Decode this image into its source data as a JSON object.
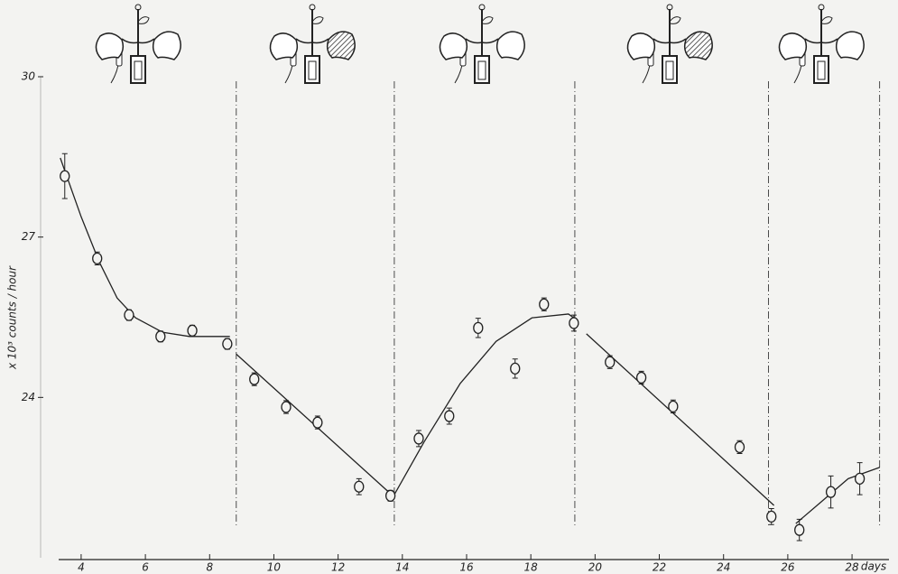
{
  "chart_data": {
    "type": "scatter",
    "y_label": "x 10³ counts / hour",
    "x_label": "days",
    "xlim": [
      3.3,
      29.15
    ],
    "ylim": [
      21,
      30
    ],
    "xticks": [
      4,
      6,
      8,
      10,
      12,
      14,
      16,
      18,
      20,
      22,
      24,
      26,
      28
    ],
    "yticks": [
      24,
      27,
      30
    ],
    "color": "#222222",
    "x": [
      3.49,
      4.5,
      5.49,
      6.47,
      7.46,
      8.55,
      9.39,
      10.38,
      11.36,
      12.65,
      13.63,
      14.51,
      15.46,
      16.36,
      17.51,
      18.41,
      19.34,
      20.46,
      21.44,
      22.43,
      24.5,
      25.49,
      26.36,
      27.34,
      28.24
    ],
    "values": [
      28.14,
      26.6,
      25.54,
      25.14,
      25.25,
      25.0,
      24.34,
      23.82,
      23.53,
      22.33,
      22.16,
      23.23,
      23.65,
      25.3,
      24.54,
      25.74,
      25.39,
      24.66,
      24.37,
      23.83,
      23.07,
      21.77,
      21.52,
      22.23,
      22.48
    ],
    "errors": [
      0.42,
      0.12,
      0.1,
      0.1,
      0.1,
      0.1,
      0.12,
      0.12,
      0.12,
      0.15,
      0.1,
      0.15,
      0.15,
      0.18,
      0.18,
      0.12,
      0.15,
      0.12,
      0.12,
      0.12,
      0.12,
      0.15,
      0.2,
      0.3,
      0.3
    ],
    "fit": {
      "x": [
        3.35,
        4.0,
        4.56,
        5.12,
        5.69,
        6.53,
        7.37,
        8.63,
        null,
        8.83,
        13.72,
        null,
        13.72,
        14.67,
        15.8,
        16.92,
        18.04,
        19.17,
        19.45,
        null,
        19.73,
        25.57,
        null,
        26.25,
        27.03,
        27.88,
        28.86
      ],
      "values": [
        28.48,
        27.38,
        26.54,
        25.86,
        25.49,
        25.22,
        25.14,
        25.14,
        null,
        24.81,
        22.15,
        null,
        22.15,
        23.16,
        24.26,
        25.05,
        25.49,
        25.56,
        25.44,
        null,
        25.19,
        21.98,
        null,
        21.64,
        22.04,
        22.48,
        22.69
      ]
    },
    "dividers": [
      8.83,
      13.75,
      19.37,
      25.4,
      28.86
    ]
  }
}
